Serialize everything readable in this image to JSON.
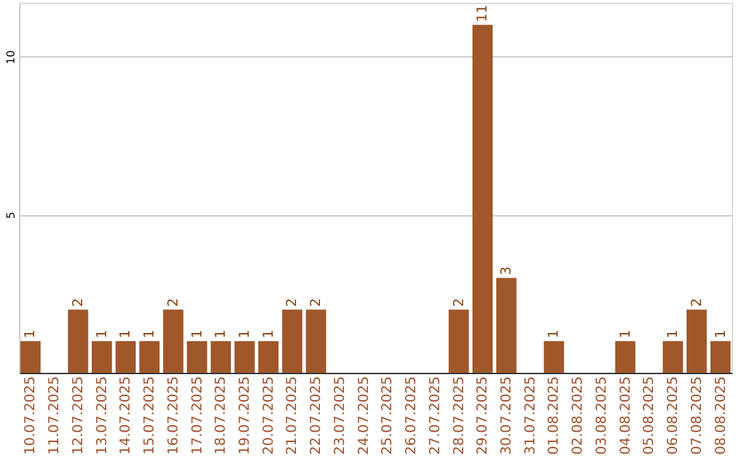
{
  "chart_data": {
    "type": "bar",
    "categories": [
      "10.07.2025",
      "11.07.2025",
      "12.07.2025",
      "13.07.2025",
      "14.07.2025",
      "15.07.2025",
      "16.07.2025",
      "17.07.2025",
      "18.07.2025",
      "19.07.2025",
      "20.07.2025",
      "21.07.2025",
      "22.07.2025",
      "23.07.2025",
      "24.07.2025",
      "25.07.2025",
      "26.07.2025",
      "27.07.2025",
      "28.07.2025",
      "29.07.2025",
      "30.07.2025",
      "31.07.2025",
      "01.08.2025",
      "02.08.2025",
      "03.08.2025",
      "04.08.2025",
      "05.08.2025",
      "06.08.2025",
      "07.08.2025",
      "08.08.2025"
    ],
    "values": [
      1,
      null,
      2,
      1,
      1,
      1,
      2,
      1,
      1,
      1,
      1,
      2,
      2,
      null,
      null,
      null,
      null,
      null,
      2,
      11,
      3,
      null,
      1,
      null,
      null,
      1,
      null,
      1,
      2,
      1
    ],
    "color": "#a0572a",
    "ylim": [
      0,
      11.7
    ],
    "yticks": [
      5,
      10
    ],
    "grid": "y",
    "data_labels": true
  }
}
